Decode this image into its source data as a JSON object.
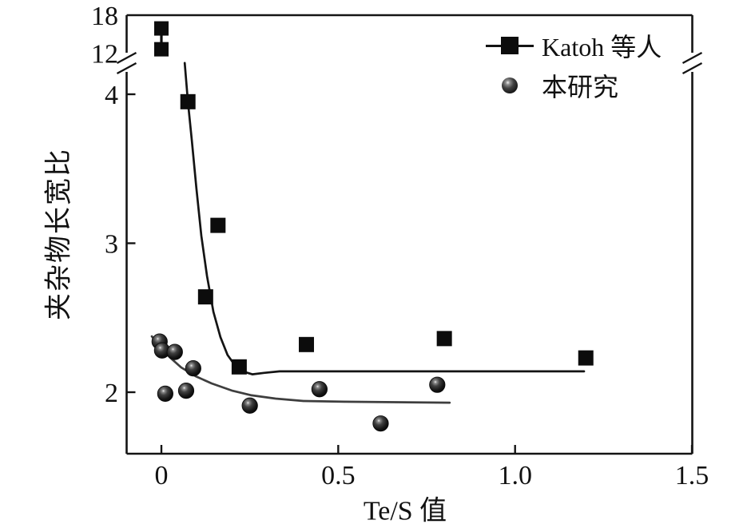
{
  "chart_data": {
    "type": "scatter",
    "title": "",
    "xlabel": "Te/S 值",
    "ylabel": "夹杂物长宽比",
    "grid": false,
    "legend_position": "top-right",
    "x_axis": {
      "ticks": [
        0,
        0.5,
        1.0,
        1.5
      ],
      "tick_labels": [
        "0",
        "0.5",
        "1.0",
        "1.5"
      ],
      "range": [
        -0.1,
        1.5
      ]
    },
    "y_axis": {
      "broken": true,
      "lower_ticks": [
        2,
        3,
        4
      ],
      "lower_tick_labels": [
        "2",
        "3",
        "4"
      ],
      "upper_ticks": [
        12,
        18
      ],
      "upper_tick_labels": [
        "12",
        "18"
      ],
      "lower_range": [
        1.59,
        4.35
      ],
      "upper_range": [
        12,
        18
      ]
    },
    "series": [
      {
        "name": "Katoh 等人",
        "marker": "filled-square",
        "color": "#0c0c0c",
        "curve_color": "#141414",
        "points": [
          [
            0.075,
            3.95
          ],
          [
            0.125,
            2.64
          ],
          [
            0.16,
            3.12
          ],
          [
            0.22,
            2.17
          ],
          [
            0.41,
            2.32
          ],
          [
            0.8,
            2.36
          ],
          [
            1.2,
            2.23
          ]
        ],
        "broken_region_points": [
          [
            0,
            15.9
          ],
          [
            0,
            12.6
          ]
        ],
        "fit_curve": [
          [
            0.066,
            4.21
          ],
          [
            0.075,
            3.95
          ],
          [
            0.086,
            3.69
          ],
          [
            0.099,
            3.37
          ],
          [
            0.113,
            3.05
          ],
          [
            0.129,
            2.78
          ],
          [
            0.147,
            2.54
          ],
          [
            0.167,
            2.37
          ],
          [
            0.187,
            2.25
          ],
          [
            0.208,
            2.18
          ],
          [
            0.23,
            2.14
          ],
          [
            0.257,
            2.12
          ],
          [
            0.29,
            2.13
          ],
          [
            0.334,
            2.14
          ],
          [
            1.195,
            2.14
          ]
        ]
      },
      {
        "name": "本研究",
        "marker": "shaded-sphere",
        "color": "#2b2b2b",
        "curve_color": "#3e3e3e",
        "points": [
          [
            -0.005,
            2.34
          ],
          [
            0.002,
            2.28
          ],
          [
            0.038,
            2.27
          ],
          [
            0.09,
            2.16
          ],
          [
            0.011,
            1.99
          ],
          [
            0.07,
            2.01
          ],
          [
            0.25,
            1.91
          ],
          [
            0.447,
            2.02
          ],
          [
            0.62,
            1.79
          ],
          [
            0.78,
            2.05
          ]
        ],
        "fit_curve": [
          [
            -0.027,
            2.375
          ],
          [
            -0.005,
            2.306
          ],
          [
            0.023,
            2.236
          ],
          [
            0.056,
            2.166
          ],
          [
            0.097,
            2.107
          ],
          [
            0.142,
            2.059
          ],
          [
            0.199,
            2.011
          ],
          [
            0.255,
            1.979
          ],
          [
            0.323,
            1.957
          ],
          [
            0.402,
            1.941
          ],
          [
            0.515,
            1.936
          ],
          [
            0.815,
            1.93
          ]
        ]
      }
    ]
  }
}
